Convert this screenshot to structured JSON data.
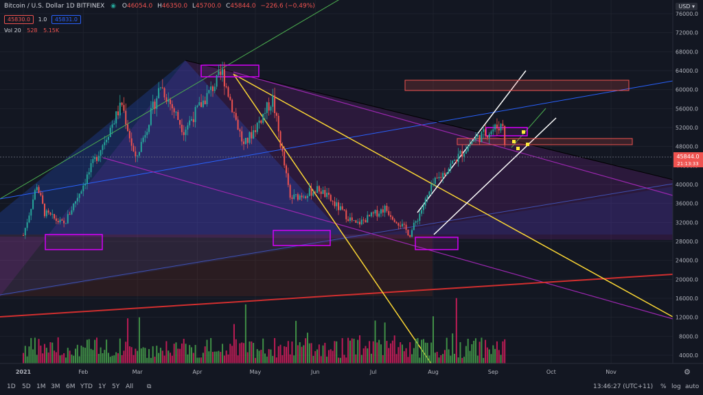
{
  "header": {
    "symbol": "Bitcoin / U.S. Dollar  1D  BITFINEX",
    "ohlc": {
      "o_label": "O",
      "o": "46054.0",
      "h_label": "H",
      "h": "46350.0",
      "l_label": "L",
      "l": "45700.0",
      "c_label": "C",
      "c": "45844.0",
      "chg": "−226.6 (−0.49%)"
    },
    "bid": "45830.0",
    "spread": "1.0",
    "ask": "45831.0",
    "vol_label": "Vol 20",
    "vol_val": "528",
    "vol_ma": "5.15K",
    "currency": "USD"
  },
  "price_tag": {
    "price": "45844.0",
    "countdown": "21:13:33"
  },
  "timeframes": [
    "1D",
    "5D",
    "1M",
    "3M",
    "6M",
    "YTD",
    "1Y",
    "5Y",
    "All"
  ],
  "clock": "13:46:27 (UTC+11)",
  "options": [
    "%",
    "log",
    "auto"
  ],
  "colors": {
    "up": "#26a69a",
    "down": "#ef5350",
    "upVol": "#4caf50",
    "downVol": "#e91e63",
    "bg": "#131722"
  },
  "chart_data": {
    "type": "candlestick",
    "title": "Bitcoin / U.S. Dollar  1D  BITFINEX",
    "x_ticks": [
      "2021",
      "Feb",
      "Mar",
      "Apr",
      "May",
      "Jun",
      "Jul",
      "Aug",
      "Sep",
      "Oct",
      "Nov"
    ],
    "y_ticks": [
      "76000.0",
      "72000.0",
      "68000.0",
      "64000.0",
      "60000.0",
      "56000.0",
      "52000.0",
      "48000.0",
      "44000.0",
      "40000.0",
      "36000.0",
      "32000.0",
      "28000.0",
      "24000.0",
      "20000.0",
      "16000.0",
      "12000.0",
      "8000.0",
      "4000.0"
    ],
    "price_range": [
      29000,
      64000
    ],
    "close_path": [
      {
        "date": "2021-01-01",
        "close": 29300
      },
      {
        "date": "2021-01-08",
        "close": 40000
      },
      {
        "date": "2021-01-12",
        "close": 34000
      },
      {
        "date": "2021-01-22",
        "close": 31500
      },
      {
        "date": "2021-02-08",
        "close": 46000
      },
      {
        "date": "2021-02-21",
        "close": 57000
      },
      {
        "date": "2021-02-28",
        "close": 45000
      },
      {
        "date": "2021-03-13",
        "close": 61000
      },
      {
        "date": "2021-03-25",
        "close": 51500
      },
      {
        "date": "2021-04-14",
        "close": 63500
      },
      {
        "date": "2021-04-25",
        "close": 48000
      },
      {
        "date": "2021-05-10",
        "close": 58000
      },
      {
        "date": "2021-05-19",
        "close": 37000
      },
      {
        "date": "2021-06-03",
        "close": 39000
      },
      {
        "date": "2021-06-22",
        "close": 31500
      },
      {
        "date": "2021-07-07",
        "close": 35000
      },
      {
        "date": "2021-07-20",
        "close": 29500
      },
      {
        "date": "2021-08-01",
        "close": 40000
      },
      {
        "date": "2021-08-22",
        "close": 49500
      },
      {
        "date": "2021-09-06",
        "close": 52700
      },
      {
        "date": "2021-09-08",
        "close": 45844
      }
    ]
  }
}
